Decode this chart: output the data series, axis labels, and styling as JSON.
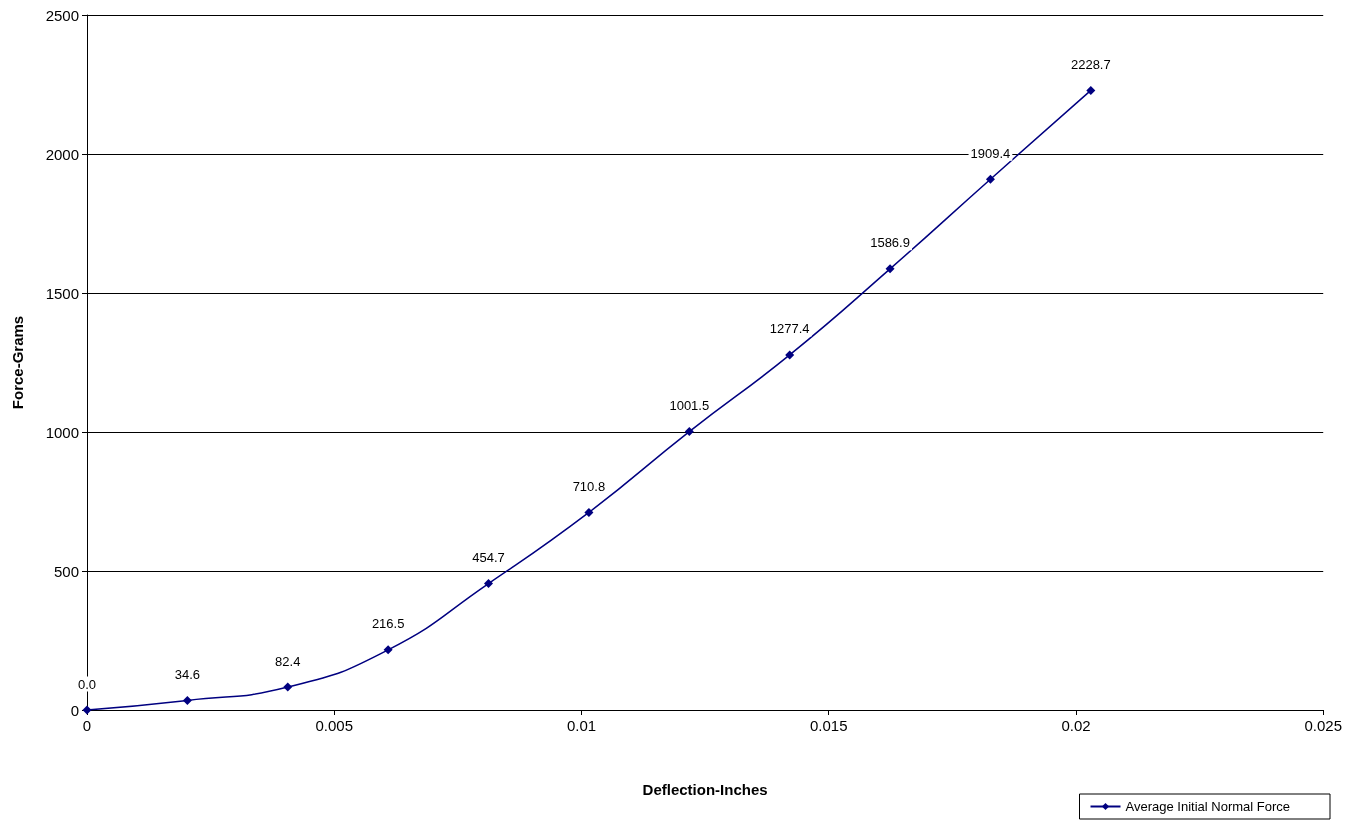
{
  "chart_data": {
    "type": "line",
    "xlabel": "Deflection-Inches",
    "ylabel": "Force-Grams",
    "x": [
      0,
      0.00203,
      0.00406,
      0.00609,
      0.00812,
      0.01015,
      0.01218,
      0.01421,
      0.01624,
      0.01827,
      0.0203
    ],
    "series": [
      {
        "name": "Average Initial Normal Force",
        "color": "#000080",
        "values": [
          0.0,
          34.6,
          82.4,
          216.5,
          454.7,
          710.8,
          1001.5,
          1277.4,
          1586.9,
          1909.4,
          2228.7
        ],
        "value_labels": [
          "0.0",
          "34.6",
          "82.4",
          "216.5",
          "454.7",
          "710.8",
          "1001.5",
          "1277.4",
          "1586.9",
          "1909.4",
          "2228.7"
        ]
      }
    ],
    "xlim": [
      0,
      0.025
    ],
    "xticks": [
      0,
      0.005,
      0.01,
      0.015,
      0.02,
      0.025
    ],
    "ylim": [
      0,
      2500
    ],
    "yticks": [
      0,
      500,
      1000,
      1500,
      2000,
      2500
    ],
    "grid": "y",
    "legend": "bottom right",
    "marker": "diamond",
    "line_style": "solid"
  }
}
